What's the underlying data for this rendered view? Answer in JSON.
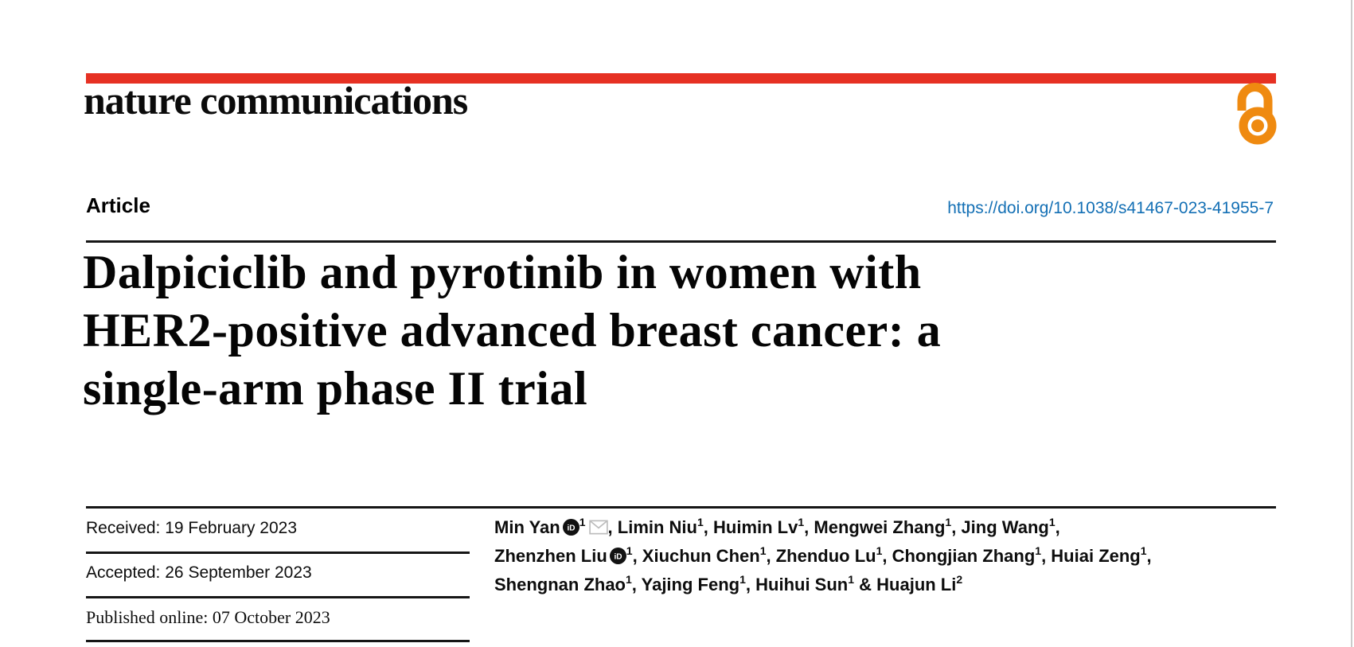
{
  "masthead": {
    "logo_text": "nature communications",
    "rule_color": "#e63123",
    "open_access_color": "#ef8a10"
  },
  "article_row": {
    "label": "Article",
    "doi": "https://doi.org/10.1038/s41467-023-41955-7",
    "doi_color": "#1470b5"
  },
  "title": {
    "lines": {
      "0": "Dalpiciclib and pyrotinib in women with",
      "1": "HER2-positive advanced breast cancer: a",
      "2": "single-arm phase II trial"
    }
  },
  "dates": {
    "rows": {
      "0": {
        "label": "Received:",
        "value": "19 February 2023"
      },
      "1": {
        "label": "Accepted:",
        "value": "26 September 2023"
      },
      "2": {
        "label": "Published online:",
        "value": "07 October 2023"
      }
    }
  },
  "authors": {
    "lines": [
      [
        {
          "name": "Min Yan",
          "orcid": true,
          "sup": "1",
          "mail": true,
          "sep": ", "
        },
        {
          "name": "Limin Niu",
          "sup": "1",
          "sep": ", "
        },
        {
          "name": "Huimin Lv",
          "sup": "1",
          "sep": ", "
        },
        {
          "name": "Mengwei Zhang",
          "sup": "1",
          "sep": ", "
        },
        {
          "name": "Jing Wang",
          "sup": "1",
          "sep": ","
        }
      ],
      [
        {
          "name": "Zhenzhen Liu",
          "orcid": true,
          "sup": "1",
          "sep": ", "
        },
        {
          "name": "Xiuchun Chen",
          "sup": "1",
          "sep": ", "
        },
        {
          "name": "Zhenduo Lu",
          "sup": "1",
          "sep": ", "
        },
        {
          "name": "Chongjian Zhang",
          "sup": "1",
          "sep": ", "
        },
        {
          "name": "Huiai Zeng",
          "sup": "1",
          "sep": ","
        }
      ],
      [
        {
          "name": "Shengnan Zhao",
          "sup": "1",
          "sep": ", "
        },
        {
          "name": "Yajing Feng",
          "sup": "1",
          "sep": ", "
        },
        {
          "name": "Huihui Sun",
          "sup": "1",
          "sep": " & "
        },
        {
          "name": "Huajun Li",
          "sup": "2",
          "sep": ""
        }
      ]
    ]
  }
}
